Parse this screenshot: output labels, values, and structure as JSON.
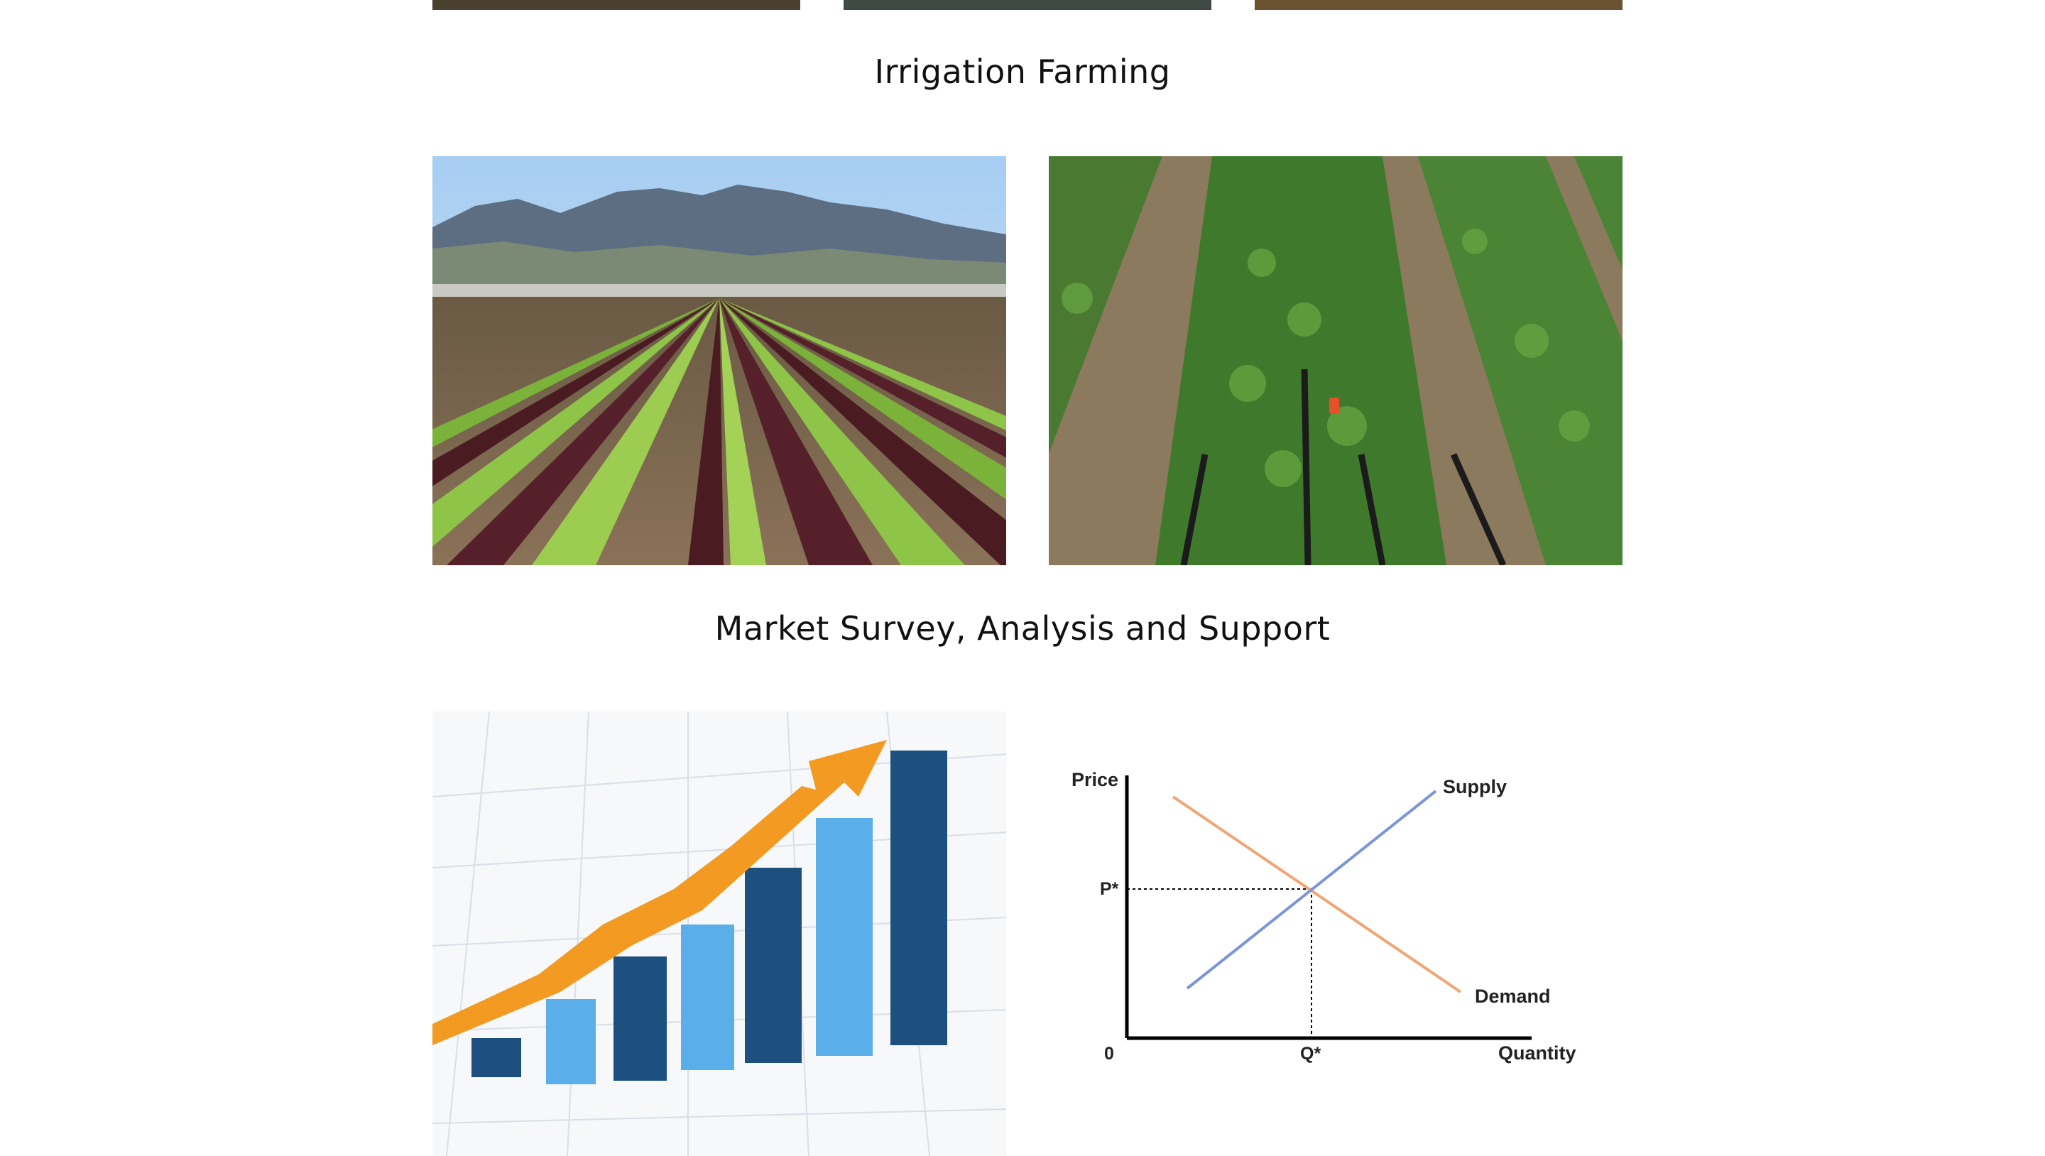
{
  "sections": {
    "irrigation": {
      "title": "Irrigation Farming"
    },
    "market": {
      "title": "Market Survey, Analysis and Support"
    }
  },
  "supply_demand": {
    "price_label": "Price",
    "quantity_label": "Quantity",
    "supply_label": "Supply",
    "demand_label": "Demand",
    "equilibrium_price_label": "P*",
    "equilibrium_quantity_label": "Q*",
    "origin_label": "0",
    "supply_color": "#7b96d8",
    "demand_color": "#f0a674"
  },
  "growth_chart": {
    "bar_dark": "#1d4f7f",
    "bar_light": "#5aaee9",
    "arrow_color": "#f39a22"
  }
}
